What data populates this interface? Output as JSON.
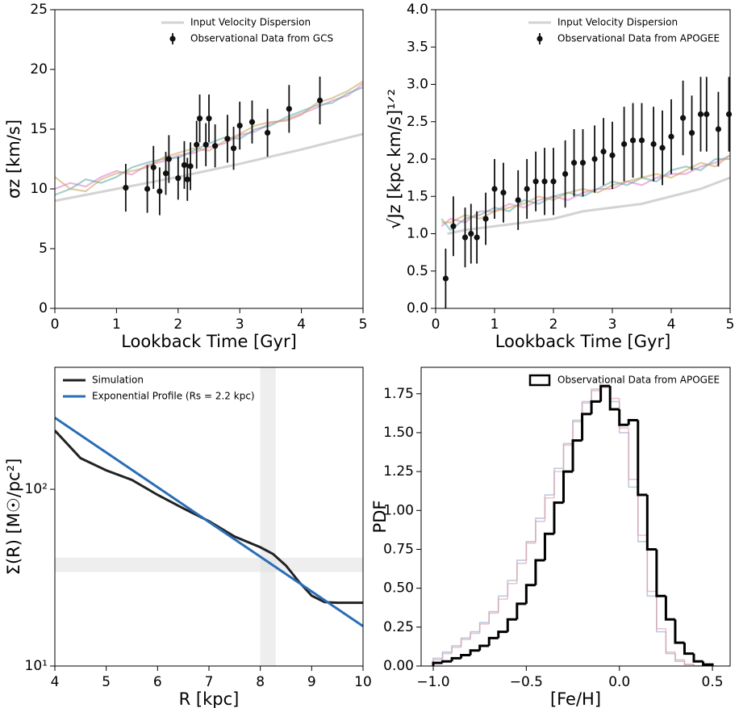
{
  "chart_data": [
    {
      "type": "line",
      "xlabel": "Lookback Time [Gyr]",
      "ylabel": "σz [km/s]",
      "xlim": [
        0,
        5
      ],
      "ylim": [
        0,
        25
      ],
      "xticks": [
        0,
        1,
        2,
        3,
        4,
        5
      ],
      "yticks": [
        0,
        5,
        10,
        15,
        20,
        25
      ],
      "legend": "upper right",
      "series": [
        {
          "color": "#e377c2",
          "x": [
            0,
            0.25,
            0.5,
            0.75,
            1,
            1.25,
            1.5,
            1.75,
            2,
            2.25,
            2.5,
            2.75,
            3,
            3.25,
            3.5,
            3.75,
            4,
            4.25,
            4.5,
            4.75,
            5
          ],
          "values": [
            10,
            10.5,
            10.2,
            11,
            11.5,
            11.2,
            12,
            12.3,
            12.8,
            13,
            13.5,
            13.8,
            14.5,
            14.8,
            15.5,
            15.8,
            16.3,
            16.8,
            17.4,
            17.8,
            18.8
          ]
        },
        {
          "color": "#5aa7a7",
          "x": [
            0,
            0.25,
            0.5,
            0.75,
            1,
            1.25,
            1.5,
            1.75,
            2,
            2.25,
            2.5,
            2.75,
            3,
            3.25,
            3.5,
            3.75,
            4,
            4.25,
            4.5,
            4.75,
            5
          ],
          "values": [
            9.5,
            10,
            10.8,
            10.5,
            11,
            11.8,
            12.2,
            12.5,
            12.6,
            13.2,
            13.8,
            14.3,
            14.2,
            15,
            15.3,
            16,
            16.5,
            17,
            17.2,
            18,
            18.5
          ]
        },
        {
          "color": "#c4a35a",
          "x": [
            0,
            0.25,
            0.5,
            0.75,
            1,
            1.25,
            1.5,
            1.75,
            2,
            2.25,
            2.5,
            2.75,
            3,
            3.25,
            3.5,
            3.75,
            4,
            4.25,
            4.5,
            4.75,
            5
          ],
          "values": [
            11,
            10,
            9.8,
            10.8,
            11.3,
            11.5,
            11.8,
            12.6,
            13,
            13.4,
            13.2,
            14,
            14.6,
            15.3,
            15.6,
            15.7,
            16.2,
            17.2,
            17.6,
            18.2,
            19
          ]
        },
        {
          "name": "Input Velocity Dispersion",
          "color": "#d3d3d3",
          "x": [
            0,
            1,
            2,
            3,
            4,
            5
          ],
          "values": [
            9,
            10,
            11,
            12.1,
            13.3,
            14.6
          ]
        },
        {
          "name": "Observational Data from GCS",
          "color": "#111111",
          "x": [
            1.15,
            1.5,
            1.6,
            1.7,
            1.8,
            1.85,
            2.0,
            2.1,
            2.15,
            2.2,
            2.3,
            2.35,
            2.45,
            2.5,
            2.6,
            2.8,
            2.9,
            3.0,
            3.2,
            3.45,
            3.8,
            4.3
          ],
          "values": [
            10.1,
            10.0,
            11.8,
            9.8,
            11.3,
            12.5,
            10.9,
            12.0,
            10.8,
            11.9,
            13.7,
            15.9,
            13.7,
            15.9,
            13.6,
            14.2,
            13.4,
            15.3,
            15.6,
            14.7,
            16.7,
            17.4
          ],
          "errors": [
            2,
            2,
            1.8,
            2,
            1.8,
            2,
            1.8,
            2,
            1.8,
            2,
            2,
            2,
            1.8,
            2,
            1.8,
            2,
            1.8,
            2,
            1.8,
            2,
            2,
            2
          ]
        }
      ]
    },
    {
      "type": "line",
      "xlabel": "Lookback Time [Gyr]",
      "ylabel": "√Jz [kpc km/s]¹ᐟ²",
      "xlim": [
        0,
        5
      ],
      "ylim": [
        0,
        4
      ],
      "xticks": [
        0,
        1,
        2,
        3,
        4,
        5
      ],
      "yticks": [
        {
          "value": 0,
          "label": "0.0"
        },
        0.5,
        {
          "value": 1,
          "label": "1.0"
        },
        1.5,
        {
          "value": 2,
          "label": "2.0"
        },
        2.5,
        {
          "value": 3,
          "label": "3.0"
        },
        3.5,
        {
          "value": 4,
          "label": "4.0"
        }
      ],
      "legend": "upper right",
      "series": [
        {
          "color": "#e377c2",
          "x": [
            0.1,
            0.25,
            0.5,
            0.75,
            1,
            1.25,
            1.5,
            1.75,
            2,
            2.25,
            2.5,
            2.75,
            3,
            3.25,
            3.5,
            3.75,
            4,
            4.25,
            4.5,
            4.75,
            5
          ],
          "values": [
            1.1,
            1.2,
            1.15,
            1.3,
            1.3,
            1.4,
            1.35,
            1.45,
            1.5,
            1.45,
            1.55,
            1.6,
            1.6,
            1.7,
            1.65,
            1.75,
            1.8,
            1.8,
            1.9,
            1.95,
            2.05
          ]
        },
        {
          "color": "#5aa7a7",
          "x": [
            0.1,
            0.25,
            0.5,
            0.75,
            1,
            1.25,
            1.5,
            1.75,
            2,
            2.25,
            2.5,
            2.75,
            3,
            3.25,
            3.5,
            3.75,
            4,
            4.25,
            4.5,
            4.75,
            5
          ],
          "values": [
            1.2,
            1.05,
            1.2,
            1.25,
            1.35,
            1.3,
            1.45,
            1.4,
            1.5,
            1.55,
            1.5,
            1.6,
            1.7,
            1.65,
            1.75,
            1.7,
            1.85,
            1.9,
            1.85,
            2.0,
            2.0
          ]
        },
        {
          "color": "#c4a35a",
          "x": [
            0.1,
            0.25,
            0.5,
            0.75,
            1,
            1.25,
            1.5,
            1.75,
            2,
            2.25,
            2.5,
            2.75,
            3,
            3.25,
            3.5,
            3.75,
            4,
            4.25,
            4.5,
            4.75,
            5
          ],
          "values": [
            1.15,
            1.15,
            1.25,
            1.2,
            1.3,
            1.35,
            1.4,
            1.5,
            1.45,
            1.55,
            1.6,
            1.55,
            1.65,
            1.7,
            1.75,
            1.8,
            1.75,
            1.85,
            1.95,
            1.9,
            2.05
          ]
        },
        {
          "name": "Input Velocity Dispersion",
          "color": "#d3d3d3",
          "x": [
            0.2,
            0.5,
            1,
            1.5,
            2,
            2.5,
            3,
            3.5,
            4,
            4.5,
            5
          ],
          "values": [
            1.0,
            1.05,
            1.1,
            1.15,
            1.2,
            1.3,
            1.35,
            1.4,
            1.5,
            1.6,
            1.75
          ]
        },
        {
          "name": "Observational Data from APOGEE",
          "color": "#111111",
          "x": [
            0.17,
            0.3,
            0.5,
            0.6,
            0.7,
            0.85,
            1.0,
            1.15,
            1.4,
            1.55,
            1.7,
            1.85,
            2.0,
            2.2,
            2.35,
            2.5,
            2.7,
            2.85,
            3.0,
            3.2,
            3.35,
            3.5,
            3.7,
            3.85,
            4.0,
            4.2,
            4.35,
            4.5,
            4.6,
            4.8,
            4.98
          ],
          "values": [
            0.4,
            1.1,
            0.95,
            1.0,
            0.95,
            1.2,
            1.6,
            1.55,
            1.45,
            1.6,
            1.7,
            1.7,
            1.7,
            1.8,
            1.95,
            1.95,
            2.0,
            2.1,
            2.05,
            2.2,
            2.25,
            2.25,
            2.2,
            2.15,
            2.3,
            2.55,
            2.35,
            2.6,
            2.6,
            2.4,
            2.6
          ],
          "errors": [
            0.4,
            0.4,
            0.4,
            0.4,
            0.35,
            0.35,
            0.4,
            0.4,
            0.4,
            0.4,
            0.4,
            0.45,
            0.45,
            0.45,
            0.45,
            0.45,
            0.45,
            0.45,
            0.45,
            0.5,
            0.5,
            0.5,
            0.5,
            0.5,
            0.5,
            0.5,
            0.5,
            0.5,
            0.5,
            0.5,
            0.5
          ]
        }
      ]
    },
    {
      "type": "line",
      "xlabel": "R [kpc]",
      "ylabel": "Σ(R) [M☉/pc²]",
      "ylog": true,
      "xlim": [
        4,
        10
      ],
      "ylim": [
        10,
        490
      ],
      "xticks": [
        4,
        5,
        6,
        7,
        8,
        9,
        10
      ],
      "yticks": [
        {
          "value": 10,
          "label": "10¹"
        },
        {
          "value": 100,
          "label": "10²"
        }
      ],
      "legend": "upper left",
      "vspan": [
        8,
        8.3
      ],
      "hspan": [
        34,
        41
      ],
      "series": [
        {
          "name": "Simulation",
          "color": "#222222",
          "x": [
            4,
            4.5,
            5,
            5.5,
            6,
            6.5,
            7,
            7.5,
            8,
            8.25,
            8.5,
            8.75,
            9,
            9.25,
            9.5,
            10
          ],
          "values": [
            215,
            150,
            128,
            113,
            93,
            78,
            66,
            54,
            47,
            43,
            37,
            30,
            25,
            23,
            22.8,
            22.8
          ]
        },
        {
          "name": "Exponential Profile (Rs = 2.2 kpc)",
          "color": "#2a6db5",
          "x": [
            4,
            10
          ],
          "values": [
            254,
            16.8
          ]
        }
      ]
    },
    {
      "type": "histogram",
      "xlabel": "[Fe/H]",
      "ylabel": "PDF",
      "xlim": [
        -1.065,
        0.595
      ],
      "ylim": [
        0,
        1.92
      ],
      "xticks": [
        {
          "value": -1,
          "label": "−1.0"
        },
        {
          "value": -0.5,
          "label": "−0.5"
        },
        {
          "value": 0,
          "label": "0.0"
        },
        {
          "value": 0.5,
          "label": "0.5"
        }
      ],
      "yticks": [
        {
          "value": 0,
          "label": "0.00"
        },
        0.25,
        {
          "value": 0.5,
          "label": "0.50"
        },
        0.75,
        {
          "value": 1,
          "label": "1.00"
        },
        1.25,
        {
          "value": 1.5,
          "label": "1.50"
        },
        1.75
      ],
      "legend": "upper right",
      "bins": [
        -1,
        -0.95,
        -0.9,
        -0.85,
        -0.8,
        -0.75,
        -0.7,
        -0.65,
        -0.6,
        -0.55,
        -0.5,
        -0.45,
        -0.4,
        -0.35,
        -0.3,
        -0.25,
        -0.2,
        -0.15,
        -0.1,
        -0.05,
        0,
        0.05,
        0.1,
        0.15,
        0.2,
        0.25,
        0.3,
        0.35,
        0.4,
        0.45,
        0.5
      ],
      "series": [
        {
          "color": "#8fa8c8",
          "values": [
            0.05,
            0.09,
            0.13,
            0.18,
            0.22,
            0.28,
            0.35,
            0.45,
            0.55,
            0.68,
            0.8,
            0.95,
            1.1,
            1.27,
            1.43,
            1.58,
            1.7,
            1.78,
            1.8,
            1.7,
            1.5,
            1.15,
            0.8,
            0.45,
            0.22,
            0.08,
            0.03,
            0.01,
            0,
            0
          ]
        },
        {
          "color": "#e39aa6",
          "values": [
            0.04,
            0.08,
            0.12,
            0.17,
            0.21,
            0.27,
            0.34,
            0.43,
            0.53,
            0.66,
            0.79,
            0.93,
            1.08,
            1.25,
            1.42,
            1.57,
            1.69,
            1.77,
            1.79,
            1.72,
            1.53,
            1.2,
            0.84,
            0.48,
            0.24,
            0.09,
            0.04,
            0.01,
            0,
            0
          ]
        },
        {
          "name": "Observational Data from APOGEE",
          "color": "#000000",
          "values": [
            0.02,
            0.03,
            0.05,
            0.07,
            0.1,
            0.13,
            0.18,
            0.22,
            0.3,
            0.4,
            0.52,
            0.68,
            0.85,
            1.05,
            1.25,
            1.45,
            1.62,
            1.7,
            1.8,
            1.65,
            1.55,
            1.58,
            1.1,
            0.75,
            0.45,
            0.3,
            0.15,
            0.08,
            0.03,
            0.01
          ]
        }
      ]
    }
  ]
}
